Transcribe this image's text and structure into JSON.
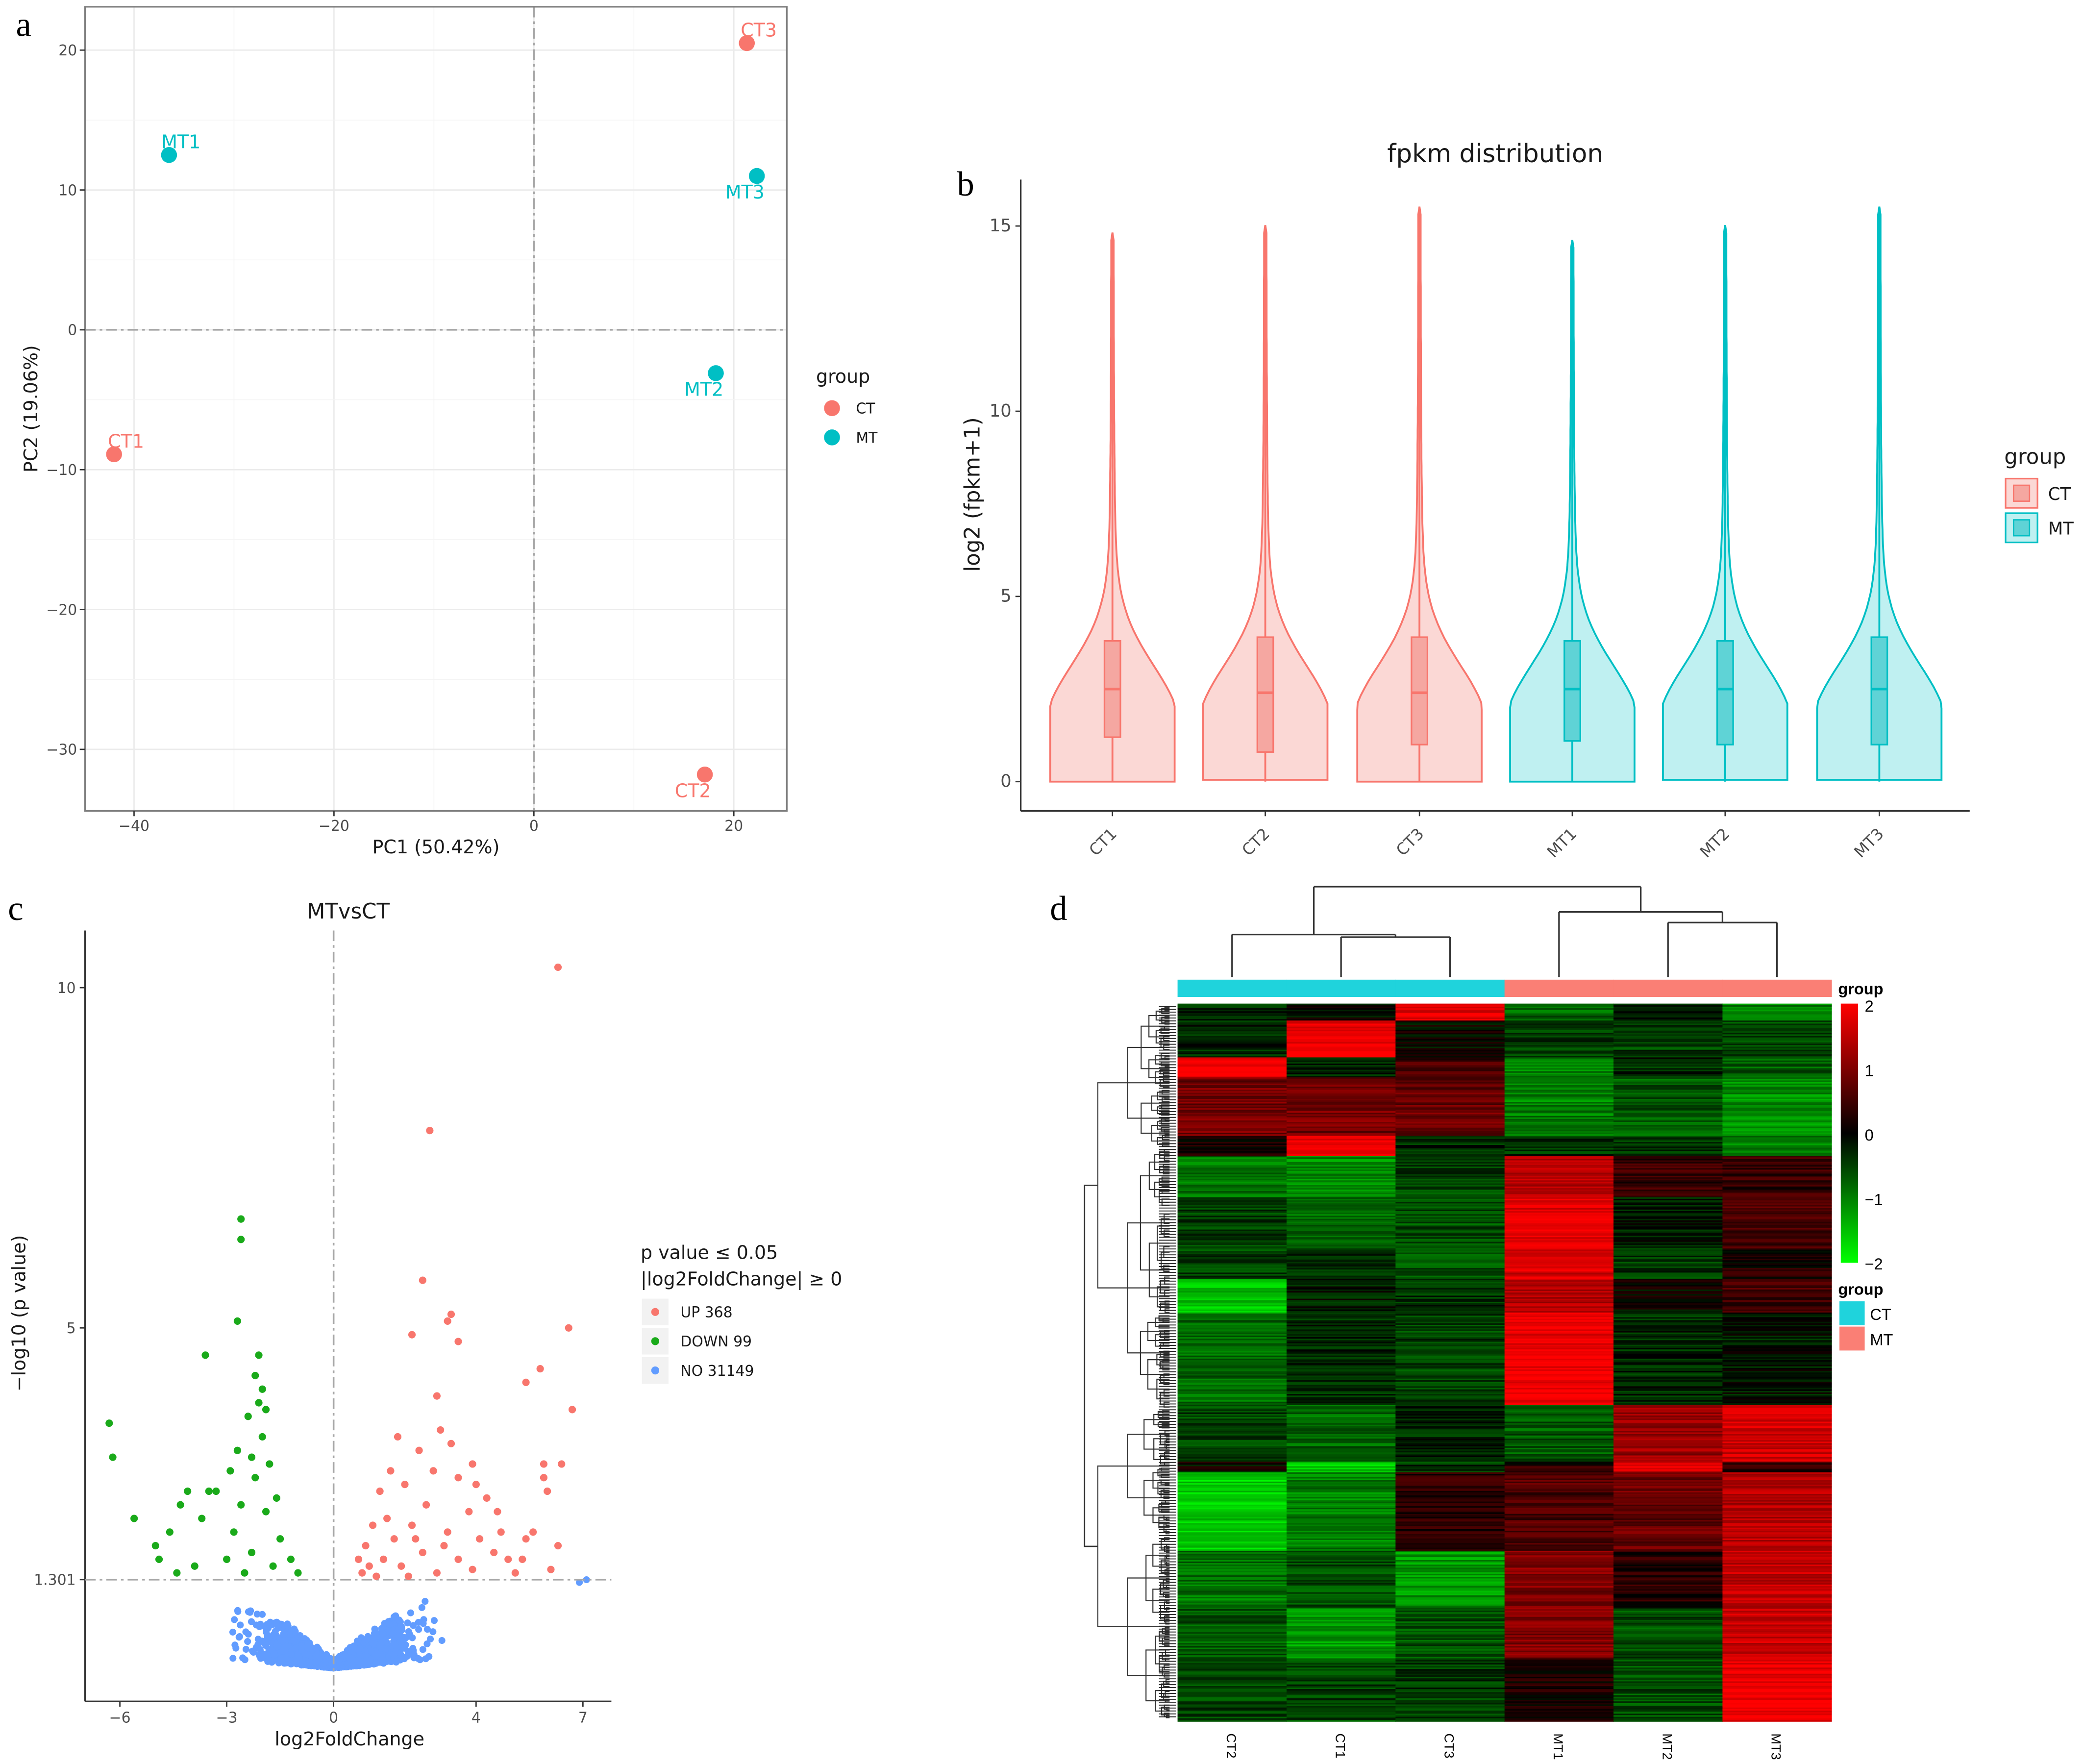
{
  "panel_letters": [
    "a",
    "b",
    "c",
    "d"
  ],
  "chart_data": [
    {
      "type": "scatter",
      "panel": "a",
      "xlabel": "PC1 (50.42%)",
      "ylabel": "PC2 (19.06%)",
      "xlim": [
        -44.9,
        25.3
      ],
      "ylim": [
        -34.4,
        23.1
      ],
      "xticks": [
        -40,
        -20,
        0,
        20
      ],
      "yticks": [
        20,
        10,
        0,
        -10,
        -20,
        -30
      ],
      "xtick_labels": [
        "−40",
        "−20",
        "0",
        "20"
      ],
      "ytick_labels": [
        "20",
        "10",
        "0",
        "−10",
        "−20",
        "−30"
      ],
      "grid": true,
      "reference_lines": {
        "x": 0,
        "y": 0,
        "style": "dash-dot"
      },
      "legend": {
        "title": "group",
        "placement": "right",
        "entries": [
          {
            "label": "CT",
            "color": "#f8766d"
          },
          {
            "label": "MT",
            "color": "#00bfc4"
          }
        ]
      },
      "points": [
        {
          "label": "CT1",
          "group": "CT",
          "x": -42.0,
          "y": -8.9
        },
        {
          "label": "MT1",
          "group": "MT",
          "x": -36.5,
          "y": 12.5
        },
        {
          "label": "CT3",
          "group": "CT",
          "x": 21.3,
          "y": 20.5
        },
        {
          "label": "MT3",
          "group": "MT",
          "x": 22.3,
          "y": 11.0
        },
        {
          "label": "MT2",
          "group": "MT",
          "x": 18.2,
          "y": -3.1
        },
        {
          "label": "CT2",
          "group": "CT",
          "x": 17.1,
          "y": -31.8
        }
      ]
    },
    {
      "type": "violin",
      "panel": "b",
      "title": "fpkm distribution",
      "ylabel": "log2 (fpkm+1)",
      "ylim": [
        0,
        15.5
      ],
      "yticks": [
        0,
        5,
        10,
        15
      ],
      "categories": [
        "CT1",
        "CT2",
        "CT3",
        "MT1",
        "MT2",
        "MT3"
      ],
      "groups": [
        "CT",
        "CT",
        "CT",
        "MT",
        "MT",
        "MT"
      ],
      "legend": {
        "title": "group",
        "placement": "right",
        "entries": [
          {
            "label": "CT",
            "color": "#f8766d"
          },
          {
            "label": "MT",
            "color": "#00bfc4"
          }
        ]
      },
      "stats": [
        {
          "median": 2.5,
          "q1": 1.2,
          "q3": 3.8,
          "max": 14.8
        },
        {
          "median": 2.4,
          "q1": 0.8,
          "q3": 3.9,
          "max": 15.0
        },
        {
          "median": 2.4,
          "q1": 1.0,
          "q3": 3.9,
          "max": 15.5
        },
        {
          "median": 2.5,
          "q1": 1.1,
          "q3": 3.8,
          "max": 14.6
        },
        {
          "median": 2.5,
          "q1": 1.0,
          "q3": 3.8,
          "max": 15.0
        },
        {
          "median": 2.5,
          "q1": 1.0,
          "q3": 3.9,
          "max": 15.5
        }
      ]
    },
    {
      "type": "scatter",
      "subtype": "volcano",
      "panel": "c",
      "title": "MTvsCT",
      "xlabel": "log2FoldChange",
      "ylabel": "−log10 (p value)",
      "xlim": [
        -6.9,
        7.9
      ],
      "ylim": [
        -0.5,
        11.2
      ],
      "xticks": [
        -6,
        -3,
        0,
        4,
        7
      ],
      "xtick_labels": [
        "−6",
        "−3",
        "0",
        "4",
        "7"
      ],
      "yticks": [
        1.301,
        5,
        10
      ],
      "ytick_labels": [
        "1.301",
        "5",
        "10"
      ],
      "threshold_lines": {
        "x": 0,
        "y": 1.301,
        "style": "dash-dot"
      },
      "legend": {
        "title_line1": "p value ≤ 0.05",
        "title_line2": "|log2FoldChange| ≥ 0",
        "placement": "right",
        "entries": [
          {
            "label": "UP 368",
            "color": "#f8766d"
          },
          {
            "label": "DOWN 99",
            "color": "#1aaa1a"
          },
          {
            "label": "NO 31149",
            "color": "#619cff"
          }
        ]
      },
      "counts": {
        "UP": 368,
        "DOWN": 99,
        "NO": 31149
      },
      "up_points": [
        [
          6.3,
          10.3
        ],
        [
          2.7,
          7.9
        ],
        [
          2.5,
          5.7
        ],
        [
          3.3,
          5.2
        ],
        [
          3.2,
          5.1
        ],
        [
          6.6,
          5.0
        ],
        [
          2.2,
          4.9
        ],
        [
          3.5,
          4.8
        ],
        [
          5.8,
          4.4
        ],
        [
          5.4,
          4.2
        ],
        [
          6.7,
          3.8
        ],
        [
          2.9,
          4.0
        ],
        [
          6.4,
          3.0
        ],
        [
          5.9,
          2.8
        ],
        [
          3.9,
          3.0
        ],
        [
          3.5,
          2.8
        ],
        [
          2.4,
          3.2
        ],
        [
          3.0,
          3.5
        ],
        [
          3.3,
          3.3
        ],
        [
          1.8,
          3.4
        ],
        [
          4.0,
          2.7
        ],
        [
          5.9,
          3.0
        ],
        [
          6.0,
          2.6
        ],
        [
          2.6,
          2.4
        ],
        [
          3.8,
          2.3
        ],
        [
          1.3,
          2.6
        ],
        [
          1.6,
          2.9
        ],
        [
          2.0,
          2.7
        ],
        [
          2.8,
          2.9
        ],
        [
          4.3,
          2.5
        ],
        [
          5.6,
          2.0
        ],
        [
          6.3,
          1.8
        ],
        [
          4.7,
          2.0
        ],
        [
          5.4,
          1.9
        ],
        [
          1.1,
          2.1
        ],
        [
          1.5,
          2.2
        ],
        [
          2.2,
          2.1
        ],
        [
          3.2,
          2.0
        ],
        [
          4.1,
          1.9
        ],
        [
          0.9,
          1.8
        ],
        [
          1.4,
          1.6
        ],
        [
          2.5,
          1.7
        ],
        [
          3.5,
          1.6
        ],
        [
          4.9,
          1.6
        ],
        [
          1.0,
          1.5
        ],
        [
          1.9,
          1.5
        ],
        [
          2.9,
          1.4
        ],
        [
          3.9,
          1.45
        ],
        [
          5.1,
          1.4
        ],
        [
          0.8,
          1.4
        ],
        [
          1.7,
          1.9
        ],
        [
          2.3,
          1.9
        ],
        [
          3.1,
          1.8
        ],
        [
          4.5,
          1.7
        ],
        [
          5.3,
          1.6
        ],
        [
          0.7,
          1.6
        ],
        [
          1.2,
          1.35
        ],
        [
          2.1,
          1.35
        ],
        [
          6.1,
          1.45
        ],
        [
          4.6,
          2.3
        ]
      ],
      "down_points": [
        [
          -6.3,
          3.6
        ],
        [
          -6.2,
          3.1
        ],
        [
          -2.6,
          6.6
        ],
        [
          -2.6,
          6.3
        ],
        [
          -2.7,
          5.1
        ],
        [
          -3.6,
          4.6
        ],
        [
          -2.1,
          4.6
        ],
        [
          -2.2,
          4.3
        ],
        [
          -2.0,
          4.1
        ],
        [
          -2.1,
          3.9
        ],
        [
          -1.9,
          3.8
        ],
        [
          -2.4,
          3.7
        ],
        [
          -2.0,
          3.4
        ],
        [
          -2.7,
          3.2
        ],
        [
          -2.3,
          3.1
        ],
        [
          -1.8,
          3.0
        ],
        [
          -2.9,
          2.9
        ],
        [
          -2.2,
          2.8
        ],
        [
          -3.3,
          2.6
        ],
        [
          -3.5,
          2.6
        ],
        [
          -4.1,
          2.6
        ],
        [
          -4.3,
          2.4
        ],
        [
          -1.6,
          2.5
        ],
        [
          -2.6,
          2.4
        ],
        [
          -1.9,
          2.3
        ],
        [
          -3.7,
          2.2
        ],
        [
          -5.6,
          2.2
        ],
        [
          -5.0,
          1.8
        ],
        [
          -4.6,
          2.0
        ],
        [
          -4.9,
          1.6
        ],
        [
          -2.8,
          2.0
        ],
        [
          -1.5,
          1.9
        ],
        [
          -2.3,
          1.7
        ],
        [
          -3.0,
          1.6
        ],
        [
          -1.2,
          1.6
        ],
        [
          -1.7,
          1.5
        ],
        [
          -3.9,
          1.5
        ],
        [
          -2.5,
          1.4
        ],
        [
          -1.0,
          1.4
        ],
        [
          -4.4,
          1.4
        ]
      ]
    },
    {
      "type": "heatmap",
      "panel": "d",
      "columns": [
        "CT2",
        "CT1",
        "CT3",
        "MT1",
        "MT2",
        "MT3"
      ],
      "column_groups": [
        "CT",
        "CT",
        "CT",
        "MT",
        "MT",
        "MT"
      ],
      "group_colors": {
        "CT": "#1fd3dc",
        "MT": "#fa7f75"
      },
      "color_scale": {
        "min": -2,
        "mid": 0,
        "max": 2,
        "low": "#00ff00",
        "midcolor": "#000000",
        "high": "#ff0000"
      },
      "colorbar_ticks": [
        "2",
        "1",
        "0",
        "−1",
        "−2"
      ],
      "colorbar_title": "group",
      "group_legend_title": "group",
      "group_legend": [
        {
          "label": "CT",
          "color": "#1fd3dc"
        },
        {
          "label": "MT",
          "color": "#fa7f75"
        }
      ],
      "column_dendrogram": [
        [
          "CT1",
          "CT3"
        ],
        [
          "CT2",
          [
            "CT1",
            "CT3"
          ]
        ],
        [
          "MT2",
          "MT3"
        ],
        [
          "MT1",
          [
            "MT2",
            "MT3"
          ]
        ]
      ],
      "row_blocks": [
        {
          "rows": 11,
          "values": [
            -0.3,
            0.0,
            1.8,
            -0.8,
            -0.3,
            -1.0
          ]
        },
        {
          "rows": 24,
          "values": [
            -0.3,
            1.9,
            0.0,
            -0.5,
            -0.5,
            -0.6
          ]
        },
        {
          "rows": 13,
          "values": [
            1.9,
            -0.2,
            0.5,
            -1.0,
            -0.3,
            -0.7
          ]
        },
        {
          "rows": 38,
          "values": [
            0.9,
            0.9,
            0.8,
            -1.0,
            -0.7,
            -1.1
          ]
        },
        {
          "rows": 13,
          "values": [
            0.1,
            1.9,
            -0.3,
            -0.4,
            -0.4,
            -1.0
          ]
        },
        {
          "rows": 27,
          "values": [
            -0.9,
            -1.1,
            -0.5,
            1.5,
            0.4,
            0.4
          ]
        },
        {
          "rows": 33,
          "values": [
            -0.5,
            -0.8,
            -0.6,
            1.8,
            -0.2,
            0.6
          ]
        },
        {
          "rows": 20,
          "values": [
            -0.5,
            -0.3,
            -0.6,
            1.7,
            -0.4,
            0.2
          ]
        },
        {
          "rows": 22,
          "values": [
            -1.5,
            -0.2,
            -0.4,
            1.4,
            0.0,
            0.5
          ]
        },
        {
          "rows": 60,
          "values": [
            -0.8,
            -0.3,
            -0.5,
            1.9,
            -0.3,
            -0.2
          ]
        },
        {
          "rows": 37,
          "values": [
            -0.5,
            -0.8,
            -0.3,
            -0.7,
            1.2,
            1.6
          ]
        },
        {
          "rows": 7,
          "values": [
            0.0,
            -1.6,
            -0.4,
            0.3,
            1.8,
            0.3
          ]
        },
        {
          "rows": 51,
          "values": [
            -1.6,
            -1.0,
            0.3,
            0.6,
            0.8,
            1.4
          ]
        },
        {
          "rows": 37,
          "values": [
            -0.9,
            -0.6,
            -1.2,
            1.0,
            0.3,
            1.5
          ]
        },
        {
          "rows": 33,
          "values": [
            -0.7,
            -1.2,
            -0.6,
            1.0,
            -0.6,
            1.6
          ]
        },
        {
          "rows": 41,
          "values": [
            -0.5,
            -0.5,
            -0.4,
            0.2,
            -0.6,
            1.9
          ]
        }
      ]
    }
  ]
}
